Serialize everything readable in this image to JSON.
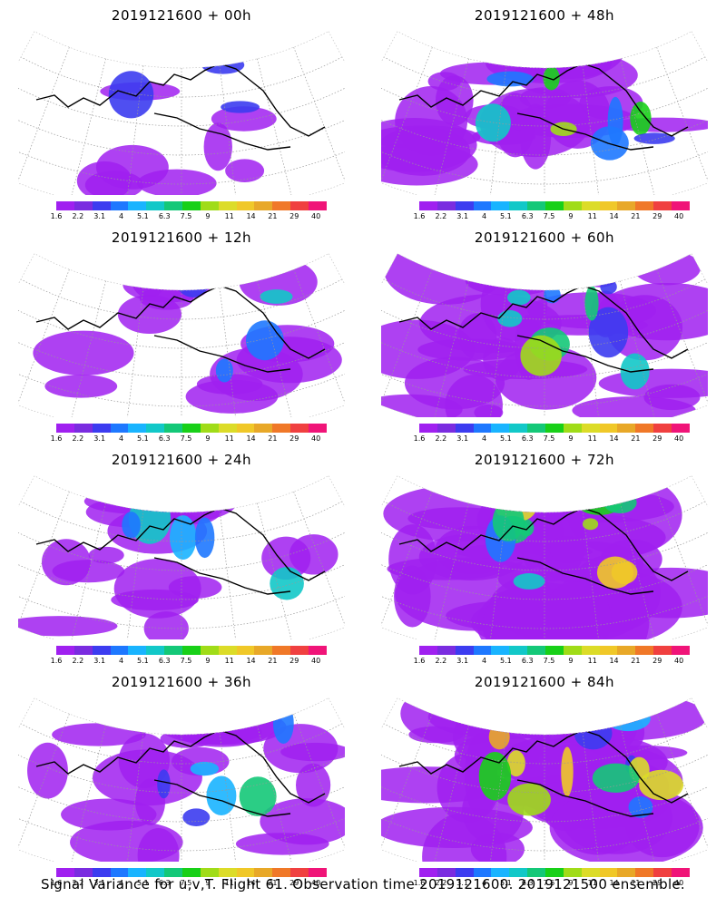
{
  "panels": [
    {
      "title": "2019121600 + 00h",
      "intensity": 0.1
    },
    {
      "title": "2019121600 + 48h",
      "intensity": 0.55
    },
    {
      "title": "2019121600 + 12h",
      "intensity": 0.2
    },
    {
      "title": "2019121600 + 60h",
      "intensity": 0.7
    },
    {
      "title": "2019121600 + 24h",
      "intensity": 0.32
    },
    {
      "title": "2019121600 + 72h",
      "intensity": 0.85
    },
    {
      "title": "2019121600 + 36h",
      "intensity": 0.42
    },
    {
      "title": "2019121600 + 84h",
      "intensity": 1.0
    }
  ],
  "colorbar": {
    "labels": [
      "1.6",
      "2.2",
      "3.1",
      "4",
      "5.1",
      "6.3",
      "7.5",
      "9",
      "11",
      "14",
      "21",
      "29",
      "40"
    ],
    "colors": [
      "#a020f0",
      "#7a2ce0",
      "#3c3cf0",
      "#1e78ff",
      "#19b4ff",
      "#12c8c8",
      "#14c878",
      "#18d018",
      "#a0dc18",
      "#dcdc28",
      "#f0c828",
      "#e8a828",
      "#f07828",
      "#f04040",
      "#f01478"
    ]
  },
  "footer": "Signal Variance for u,v,T. Flight 61. Observation time 2019121600. 2019121500 ensemble."
}
